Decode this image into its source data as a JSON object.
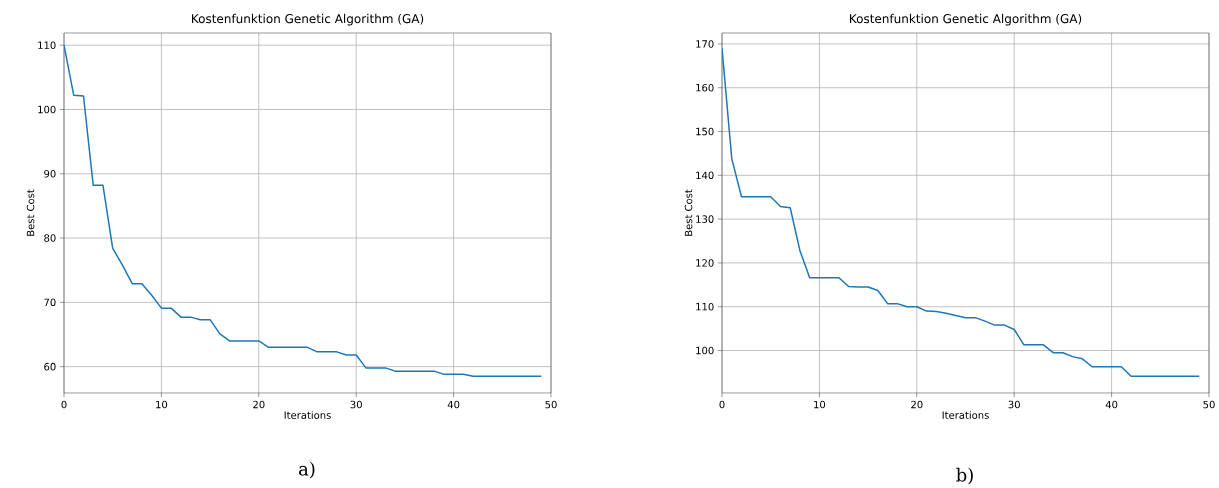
{
  "chart_data": [
    {
      "type": "line",
      "title": "Kostenfunktion Genetic Algorithm (GA)",
      "xlabel": "Iterations",
      "ylabel": "Best Cost",
      "color": "#1f77b4",
      "grid": true,
      "xlim": [
        0,
        50
      ],
      "ylim": [
        55.9,
        111.9
      ],
      "xticks": [
        0,
        10,
        20,
        30,
        40,
        50
      ],
      "yticks": [
        60,
        70,
        80,
        90,
        100,
        110
      ],
      "annotations": [
        "a)"
      ],
      "x": [
        0,
        1,
        2,
        3,
        4,
        5,
        6,
        7,
        8,
        9,
        10,
        11,
        12,
        13,
        14,
        15,
        16,
        17,
        18,
        19,
        20,
        21,
        22,
        23,
        24,
        25,
        26,
        27,
        28,
        29,
        30,
        31,
        32,
        33,
        34,
        35,
        36,
        37,
        38,
        39,
        40,
        41,
        42,
        43,
        44,
        45,
        46,
        47,
        48,
        49
      ],
      "values": [
        110,
        102.2,
        102.1,
        88.2,
        88.2,
        78.4,
        75.8,
        72.9,
        72.9,
        71.1,
        69.1,
        69.1,
        67.7,
        67.7,
        67.3,
        67.3,
        65.1,
        64.0,
        64.0,
        64.0,
        64.0,
        63.0,
        63.0,
        63.0,
        63.0,
        63.0,
        62.3,
        62.3,
        62.3,
        61.8,
        61.8,
        59.8,
        59.8,
        59.8,
        59.3,
        59.3,
        59.3,
        59.3,
        59.3,
        58.8,
        58.8,
        58.8,
        58.5,
        58.5,
        58.5,
        58.5,
        58.5,
        58.5,
        58.5,
        58.5
      ]
    },
    {
      "type": "line",
      "title": "Kostenfunktion Genetic Algorithm (GA)",
      "xlabel": "Iterations",
      "ylabel": "Best Cost",
      "color": "#1f77b4",
      "grid": true,
      "xlim": [
        0,
        50
      ],
      "ylim": [
        90.3,
        172.5
      ],
      "xticks": [
        0,
        10,
        20,
        30,
        40,
        50
      ],
      "yticks": [
        100,
        110,
        120,
        130,
        140,
        150,
        160,
        170
      ],
      "annotations": [
        "b)"
      ],
      "x": [
        0,
        1,
        2,
        3,
        4,
        5,
        6,
        7,
        8,
        9,
        10,
        11,
        12,
        13,
        14,
        15,
        16,
        17,
        18,
        19,
        20,
        21,
        22,
        23,
        24,
        25,
        26,
        27,
        28,
        29,
        30,
        31,
        32,
        33,
        34,
        35,
        36,
        37,
        38,
        39,
        40,
        41,
        42,
        43,
        44,
        45,
        46,
        47,
        48,
        49
      ],
      "values": [
        169,
        143.8,
        135.1,
        135.1,
        135.1,
        135.1,
        132.9,
        132.6,
        122.8,
        116.6,
        116.6,
        116.6,
        116.6,
        114.6,
        114.5,
        114.5,
        113.7,
        110.7,
        110.7,
        110.0,
        110.0,
        109.0,
        108.9,
        108.5,
        108.0,
        107.5,
        107.5,
        106.7,
        105.8,
        105.8,
        104.8,
        101.3,
        101.3,
        101.3,
        99.5,
        99.5,
        98.6,
        98.1,
        96.3,
        96.3,
        96.3,
        96.3,
        94.1,
        94.1,
        94.1,
        94.1,
        94.1,
        94.1,
        94.1,
        94.1
      ]
    }
  ]
}
